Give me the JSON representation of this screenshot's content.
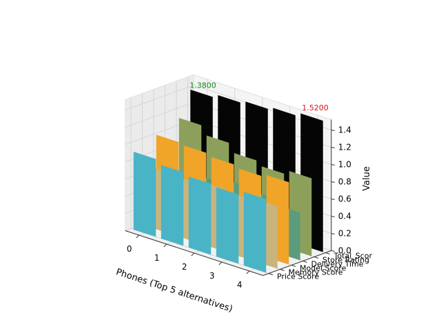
{
  "chart_data": {
    "type": "bar3d",
    "xlabel": "Phones (Top 5 alternatives)",
    "ylabel": "",
    "zlabel": "Value",
    "x_categories": [
      "0",
      "1",
      "2",
      "3",
      "4"
    ],
    "y_categories": [
      "Price Score",
      "Memory Score",
      "Model Score",
      "Delivery Time",
      "Store Rating",
      "Total_Scor"
    ],
    "zlim": [
      0,
      1.52
    ],
    "z_ticks": [
      "0.0",
      "0.2",
      "0.4",
      "0.6",
      "0.8",
      "1.0",
      "1.2",
      "1.4"
    ],
    "grid": true,
    "series": [
      {
        "name": "Price Score",
        "color": "#4ab4c7",
        "values": [
          0.9,
          0.85,
          0.82,
          0.8,
          0.85
        ]
      },
      {
        "name": "Memory Score",
        "color": "#c9b47c",
        "values": [
          0.7,
          0.68,
          0.72,
          0.7,
          0.72
        ]
      },
      {
        "name": "Model Score",
        "color": "#f0a428",
        "values": [
          1.0,
          0.98,
          0.95,
          0.92,
          0.95
        ]
      },
      {
        "name": "Delivery Time",
        "color": "#5c9c7c",
        "values": [
          0.55,
          0.6,
          0.65,
          0.62,
          0.55
        ]
      },
      {
        "name": "Store Rating",
        "color": "#8ca05c",
        "values": [
          1.1,
          1.0,
          0.9,
          0.85,
          0.9
        ]
      },
      {
        "name": "Total_Scor",
        "color": "#050505",
        "values": [
          1.38,
          1.42,
          1.45,
          1.48,
          1.52
        ]
      }
    ],
    "annotations": [
      {
        "text": "1.3800",
        "color": "#118a11"
      },
      {
        "text": "1.5200",
        "color": "#e01010"
      }
    ]
  }
}
